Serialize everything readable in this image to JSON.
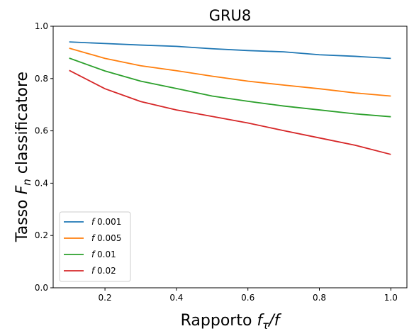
{
  "chart_data": {
    "type": "line",
    "title": "GRU8",
    "xlabel_prefix": "Rapporto ",
    "xlabel_math": "f",
    "xlabel_sub": "τ",
    "xlabel_suffix": "/f",
    "ylabel_prefix": "Tasso ",
    "ylabel_math": "F",
    "ylabel_sub": "n",
    "ylabel_suffix": " classificatore",
    "x": [
      0.1,
      0.2,
      0.3,
      0.4,
      0.5,
      0.6,
      0.7,
      0.8,
      0.9,
      1.0
    ],
    "xlim": [
      0.055,
      1.045
    ],
    "ylim": [
      0.0,
      1.0
    ],
    "xticks": [
      0.2,
      0.4,
      0.6,
      0.8,
      1.0
    ],
    "xtick_labels": [
      "0.2",
      "0.4",
      "0.6",
      "0.8",
      "1.0"
    ],
    "yticks": [
      0.0,
      0.2,
      0.4,
      0.6,
      0.8,
      1.0
    ],
    "ytick_labels": [
      "0.0",
      "0.2",
      "0.4",
      "0.6",
      "0.8",
      "1.0"
    ],
    "grid": false,
    "legend_position": "lower-left",
    "series": [
      {
        "name": "0.001",
        "color": "#1f77b4",
        "values": [
          0.94,
          0.934,
          0.928,
          0.923,
          0.914,
          0.907,
          0.902,
          0.891,
          0.885,
          0.877
        ]
      },
      {
        "name": "0.005",
        "color": "#ff7f0e",
        "values": [
          0.916,
          0.877,
          0.849,
          0.83,
          0.809,
          0.79,
          0.775,
          0.761,
          0.745,
          0.733
        ]
      },
      {
        "name": "0.01",
        "color": "#2ca02c",
        "values": [
          0.878,
          0.829,
          0.79,
          0.762,
          0.733,
          0.713,
          0.695,
          0.68,
          0.665,
          0.654
        ]
      },
      {
        "name": "0.02",
        "color": "#d62728",
        "values": [
          0.831,
          0.761,
          0.712,
          0.68,
          0.655,
          0.63,
          0.601,
          0.573,
          0.545,
          0.51
        ]
      }
    ],
    "legend_prefix": "f"
  }
}
